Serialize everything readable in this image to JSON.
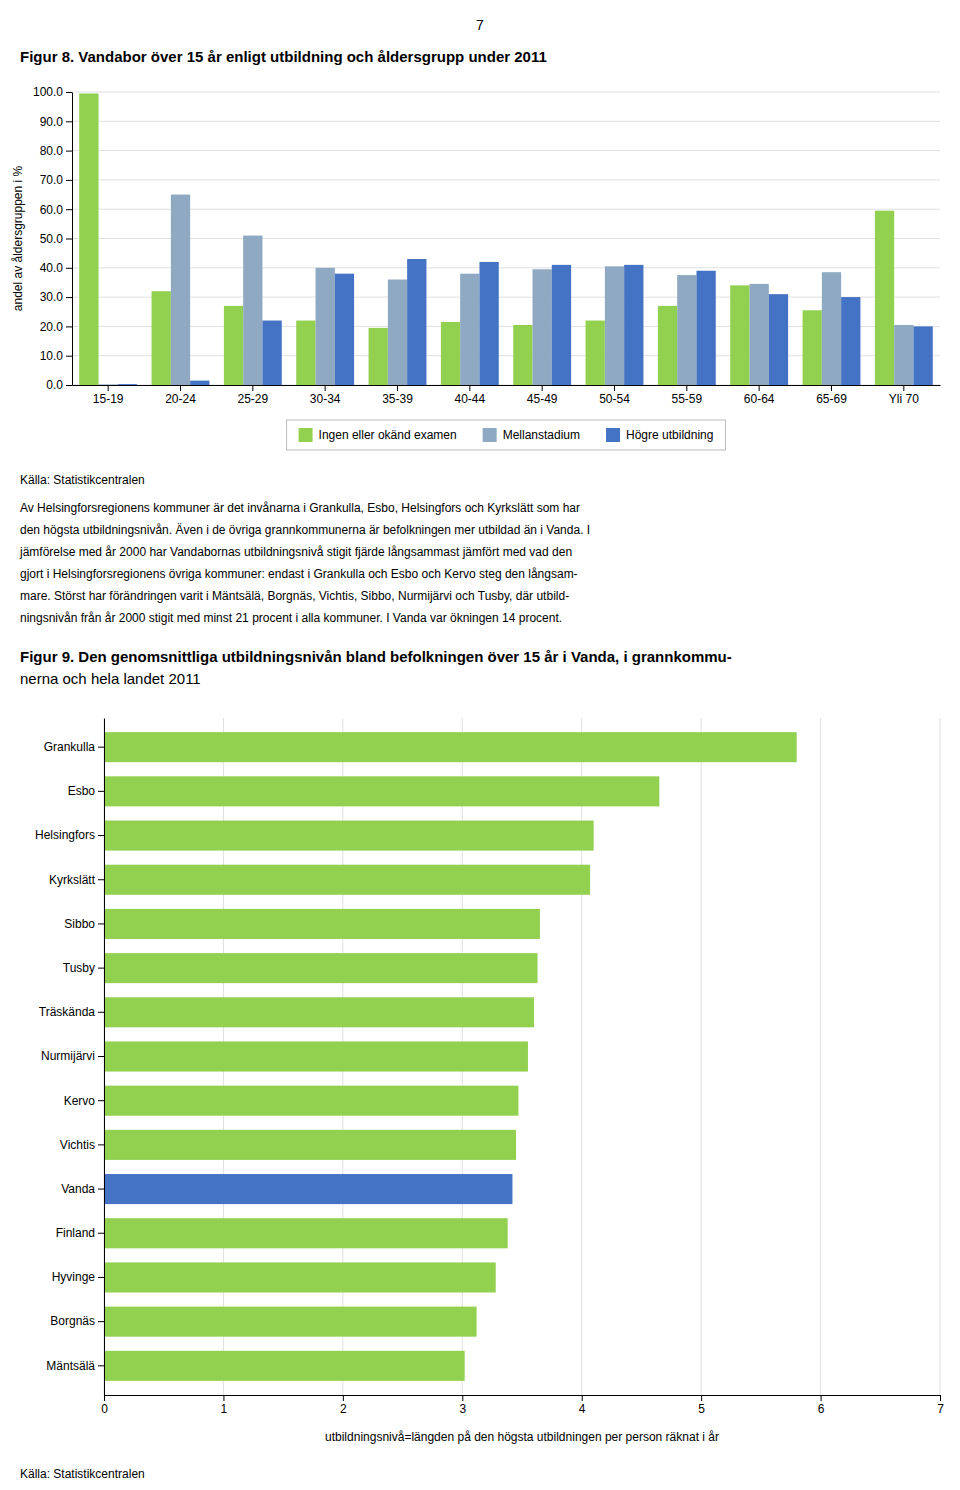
{
  "page_number": "7",
  "body_text": [
    "Av Helsingforsregionens kommuner är det invånarna i Grankulla, Esbo, Helsingfors och Kyrkslätt som har",
    "den högsta utbildningsnivån. Även i de övriga grannkommunerna är befolkningen mer utbildad än i Vanda. I",
    "jämförelse med år 2000 har Vandabornas utbildningsnivå stigit fjärde långsammast jämfört med vad den",
    "gjort i Helsingforsregionens övriga kommuner: endast i Grankulla och Esbo och Kervo steg den långsam-",
    "mare. Störst har förändringen varit i Mäntsälä, Borgnäs, Vichtis, Sibbo, Nurmijärvi och Tusby, där utbild-",
    "ningsnivån från år 2000 stigit med minst 21 procent i alla kommuner. I Vanda var ökningen 14 procent."
  ],
  "chart_data": [
    {
      "type": "bar",
      "title": [
        "Figur 8. Vandabor över 15 år enligt utbildning och åldersgrupp under 2011"
      ],
      "ylabel": "andel av åldersgruppen i %",
      "categories": [
        "15-19",
        "20-24",
        "25-29",
        "30-34",
        "35-39",
        "40-44",
        "45-49",
        "50-54",
        "55-59",
        "60-64",
        "65-69",
        "Yli 70"
      ],
      "series": [
        {
          "name": "Ingen eller okänd examen",
          "color": "#92d050",
          "values": [
            99.5,
            32.0,
            27.0,
            22.0,
            19.5,
            21.5,
            20.5,
            22.0,
            27.0,
            34.0,
            25.5,
            59.5
          ]
        },
        {
          "name": "Mellanstadium",
          "color": "#8ea9c1",
          "values": [
            0.2,
            65.0,
            51.0,
            40.0,
            36.0,
            38.0,
            39.5,
            40.5,
            37.5,
            34.5,
            38.5,
            20.5
          ]
        },
        {
          "name": "Högre utbildning",
          "color": "#4472c4",
          "values": [
            0.3,
            1.5,
            22.0,
            38.0,
            43.0,
            42.0,
            41.0,
            41.0,
            39.0,
            31.0,
            30.0,
            20.0
          ]
        }
      ],
      "ylim": [
        0,
        100
      ],
      "yticks": [
        {
          "value": 0,
          "label": "0.0"
        },
        {
          "value": 10,
          "label": "10.0"
        },
        {
          "value": 20,
          "label": "20.0"
        },
        {
          "value": 30,
          "label": "30.0"
        },
        {
          "value": 40,
          "label": "40.0"
        },
        {
          "value": 50,
          "label": "50.0"
        },
        {
          "value": 60,
          "label": "60.0"
        },
        {
          "value": 70,
          "label": "70.0"
        },
        {
          "value": 80,
          "label": "80.0"
        },
        {
          "value": 90,
          "label": "90.0"
        },
        {
          "value": 100,
          "label": "100.0"
        }
      ],
      "grid": true,
      "legend": "bottom",
      "annotations": [
        "Källa: Statistikcentralen"
      ]
    },
    {
      "type": "bar",
      "orientation": "horizontal",
      "title": [
        "Figur 9. Den genomsnittliga utbildningsnivån bland befolkningen över 15 år i Vanda, i grannkommu-",
        "nerna och hela landet 2011"
      ],
      "xlabel": "utbildningsnivå=längden på den högsta utbildningen per person räknat i år",
      "categories": [
        "Grankulla",
        "Esbo",
        "Helsingfors",
        "Kyrkslätt",
        "Sibbo",
        "Tusby",
        "Träskända",
        "Nurmijärvi",
        "Kervo",
        "Vichtis",
        "Vanda",
        "Finland",
        "Hyvinge",
        "Borgnäs",
        "Mäntsälä"
      ],
      "values": [
        5.8,
        4.65,
        4.1,
        4.07,
        3.65,
        3.63,
        3.6,
        3.55,
        3.47,
        3.45,
        3.42,
        3.38,
        3.28,
        3.12,
        3.02
      ],
      "colors": [
        "#92d050",
        "#92d050",
        "#92d050",
        "#92d050",
        "#92d050",
        "#92d050",
        "#92d050",
        "#92d050",
        "#92d050",
        "#92d050",
        "#4472c4",
        "#92d050",
        "#92d050",
        "#92d050",
        "#92d050"
      ],
      "xlim": [
        0,
        7
      ],
      "xticks": [
        0,
        1,
        2,
        3,
        4,
        5,
        6,
        7
      ],
      "grid": true,
      "annotations": [
        "Källa: Statistikcentralen"
      ]
    }
  ]
}
